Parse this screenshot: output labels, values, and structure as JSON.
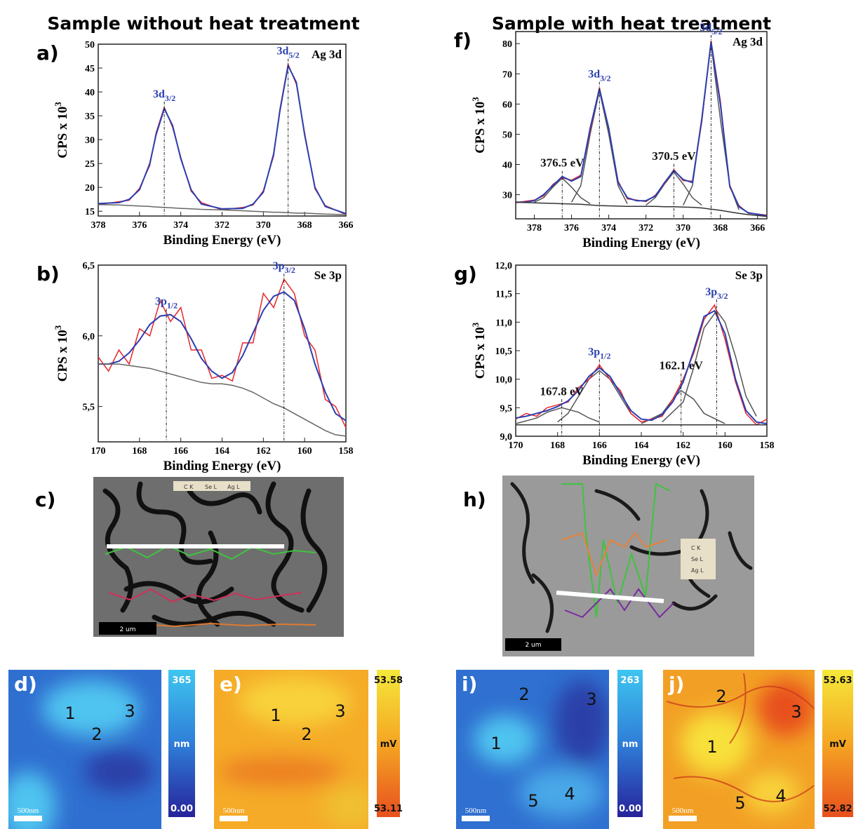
{
  "headers": [
    "Sample without heat treatment",
    "Sample with heat treatment"
  ],
  "chart_data": [
    {
      "type": "line",
      "panel": "a)",
      "corner_label": "Ag 3d",
      "x_label": "Binding Energy (eV)",
      "y_label": "CPS x 10",
      "y_label_sup": "3",
      "xlim": [
        378,
        366
      ],
      "ylim": [
        14,
        50
      ],
      "xticks": [
        378,
        376,
        374,
        372,
        370,
        368,
        366
      ],
      "yticks": [
        15,
        20,
        25,
        30,
        35,
        40,
        45,
        50
      ],
      "x": [
        378,
        377,
        376.5,
        376,
        375.5,
        375.2,
        374.8,
        374.4,
        374,
        373.5,
        373,
        372,
        371,
        370.5,
        370,
        369.5,
        369.2,
        368.8,
        368.4,
        368,
        367.5,
        367,
        366
      ],
      "series": [
        {
          "color": "#e8262a",
          "values": [
            16.4,
            17.0,
            17.3,
            19.8,
            24.6,
            31.4,
            36.8,
            32.6,
            26.3,
            19.2,
            16.8,
            15.3,
            15.8,
            16.3,
            19.3,
            26.6,
            36.4,
            45.8,
            41.6,
            31.4,
            19.7,
            16.2,
            14.3
          ]
        },
        {
          "color": "#2b3fb0",
          "values": [
            16.6,
            16.8,
            17.5,
            19.5,
            25,
            31,
            36.5,
            33,
            26,
            19.5,
            16.5,
            15.5,
            15.6,
            16.5,
            19,
            27,
            36,
            45.5,
            42,
            31,
            20,
            16,
            14.5
          ]
        },
        {
          "color": "#666666",
          "values": [
            16.4,
            16.3,
            16.2,
            16.1,
            16,
            15.9,
            15.8,
            15.7,
            15.6,
            15.5,
            15.4,
            15.3,
            15.1,
            15,
            14.9,
            14.8,
            14.8,
            14.7,
            14.6,
            14.6,
            14.5,
            14.4,
            14.3
          ]
        }
      ],
      "annotations": [
        {
          "text": "3d",
          "sub": "3/2",
          "x": 374.8
        },
        {
          "text": "3d",
          "sub": "5/2",
          "x": 368.8
        }
      ]
    },
    {
      "type": "line",
      "panel": "b)",
      "corner_label": "Se 3p",
      "x_label": "Binding Energy (eV)",
      "y_label": "CPS x 10",
      "y_label_sup": "3",
      "xlim": [
        170,
        158
      ],
      "ylim": [
        5.25,
        6.5
      ],
      "xticks": [
        170,
        168,
        166,
        164,
        162,
        160,
        158
      ],
      "yticks": [
        {
          "value": 5.5,
          "label": "5,5"
        },
        {
          "value": 6.0,
          "label": "6,0"
        },
        {
          "value": 6.5,
          "label": "6,5"
        }
      ],
      "x": [
        170,
        169.5,
        169,
        168.5,
        168,
        167.5,
        167,
        166.5,
        166,
        165.5,
        165,
        164.5,
        164,
        163.5,
        163,
        162.5,
        162,
        161.5,
        161,
        160.5,
        160,
        159.5,
        159,
        158.5,
        158
      ],
      "series": [
        {
          "color": "#e8262a",
          "values": [
            5.85,
            5.75,
            5.9,
            5.8,
            6.05,
            6.0,
            6.25,
            6.1,
            6.2,
            5.9,
            5.9,
            5.7,
            5.72,
            5.68,
            5.95,
            5.95,
            6.3,
            6.2,
            6.4,
            6.3,
            6.0,
            5.9,
            5.55,
            5.5,
            5.35
          ]
        },
        {
          "color": "#2b3fb0",
          "values": [
            5.8,
            5.8,
            5.82,
            5.88,
            5.97,
            6.08,
            6.14,
            6.15,
            6.1,
            5.98,
            5.84,
            5.75,
            5.7,
            5.74,
            5.86,
            6.02,
            6.18,
            6.28,
            6.31,
            6.25,
            6.05,
            5.8,
            5.6,
            5.45,
            5.4
          ]
        },
        {
          "color": "#666666",
          "values": [
            5.8,
            5.8,
            5.8,
            5.79,
            5.78,
            5.77,
            5.75,
            5.73,
            5.71,
            5.69,
            5.67,
            5.66,
            5.66,
            5.65,
            5.63,
            5.6,
            5.56,
            5.52,
            5.49,
            5.45,
            5.41,
            5.37,
            5.33,
            5.3,
            5.29
          ]
        }
      ],
      "annotations": [
        {
          "text": "3p",
          "sub": "1/2",
          "x": 166.7
        },
        {
          "text": "3p",
          "sub": "3/2",
          "x": 161
        }
      ]
    },
    {
      "type": "line",
      "panel": "f)",
      "corner_label": "Ag 3d",
      "x_label": "Binding Energy (eV)",
      "y_label": "CPS x 10",
      "y_label_sup": "3",
      "xlim": [
        379,
        365.5
      ],
      "ylim": [
        22,
        84
      ],
      "xticks": [
        378,
        376,
        374,
        372,
        370,
        368,
        366
      ],
      "yticks": [
        30,
        40,
        50,
        60,
        70,
        80
      ],
      "x": [
        379,
        378.5,
        378,
        377.5,
        377,
        376.5,
        376,
        375.5,
        375,
        374.5,
        374,
        373.5,
        373,
        372.5,
        372,
        371.5,
        371,
        370.5,
        370,
        369.5,
        369,
        368.5,
        368,
        367.5,
        367,
        366.5,
        366,
        365.5
      ],
      "series": [
        {
          "color": "#555555",
          "x": [
            378,
            377.5,
            377,
            376.5,
            376,
            375.5,
            375
          ],
          "values": [
            27.5,
            29,
            32.5,
            35.5,
            32.5,
            29,
            27
          ]
        },
        {
          "color": "#555555",
          "x": [
            376,
            375.5,
            375,
            374.5,
            374,
            373.5,
            373
          ],
          "values": [
            27.5,
            33,
            50,
            64.5,
            50,
            33,
            27
          ]
        },
        {
          "color": "#555555",
          "x": [
            372,
            371.5,
            371,
            370.5,
            370,
            369.5,
            369
          ],
          "values": [
            26.5,
            29,
            33.5,
            37.5,
            33.5,
            29,
            26.5
          ]
        },
        {
          "color": "#555555",
          "x": [
            370,
            369.5,
            369,
            368.5,
            368,
            367.5,
            367
          ],
          "values": [
            26.5,
            33,
            55,
            80,
            55,
            33,
            25
          ]
        },
        {
          "color": "#e8262a",
          "values": [
            27.3,
            27.8,
            28.2,
            29.6,
            33.4,
            35.6,
            34.8,
            36.5,
            51,
            65.5,
            51.5,
            34.5,
            28.6,
            28.2,
            27.7,
            29.8,
            33.6,
            38.3,
            34.6,
            34.5,
            54,
            81,
            61,
            32.5,
            26.4,
            23.8,
            23.6,
            23.2
          ]
        },
        {
          "color": "#2b3fb0",
          "values": [
            27.5,
            27.5,
            28,
            30,
            33,
            36,
            34.5,
            36,
            52,
            65,
            52,
            34,
            29,
            28,
            28,
            29.5,
            34,
            38,
            35,
            34,
            55,
            80.5,
            60,
            33,
            26,
            24,
            23.5,
            23
          ]
        },
        {
          "color": "#333333",
          "values": [
            27.5,
            27.4,
            27.3,
            27.2,
            27.1,
            27,
            26.9,
            26.8,
            26.6,
            26.4,
            26.3,
            26.2,
            26.1,
            26.1,
            26.1,
            26.1,
            26,
            26,
            25.9,
            25.8,
            25.6,
            25.2,
            24.8,
            24.3,
            23.8,
            23.4,
            23.1,
            22.8
          ]
        }
      ],
      "annotations": [
        {
          "text": "376.5 eV",
          "x": 376.5
        },
        {
          "text": "3d",
          "sub": "3/2",
          "x": 374.5
        },
        {
          "text": "370.5 eV",
          "x": 370.5
        },
        {
          "text": "3d",
          "sub": "5/2",
          "x": 368.5
        }
      ]
    },
    {
      "type": "line",
      "panel": "g)",
      "corner_label": "Se 3p",
      "x_label": "Binding Energy (eV)",
      "y_label": "CPS x 10",
      "y_label_sup": "3",
      "xlim": [
        170,
        158
      ],
      "ylim": [
        9,
        12
      ],
      "xticks": [
        170,
        168,
        166,
        164,
        162,
        160,
        158
      ],
      "yticks": [
        {
          "value": 9.0,
          "label": "9,0"
        },
        {
          "value": 9.5,
          "label": "9,5"
        },
        {
          "value": 10.0,
          "label": "10,0"
        },
        {
          "value": 10.5,
          "label": "10,5"
        },
        {
          "value": 11.0,
          "label": "11,0"
        },
        {
          "value": 11.5,
          "label": "11,5"
        },
        {
          "value": 12.0,
          "label": "12,0"
        }
      ],
      "x": [
        170,
        169.5,
        169,
        168.5,
        168,
        167.5,
        167,
        166.5,
        166,
        165.5,
        165,
        164.5,
        164,
        163.5,
        163,
        162.5,
        162,
        161.5,
        161,
        160.5,
        160,
        159.5,
        159,
        158.5,
        158
      ],
      "series": [
        {
          "color": "#555555",
          "x": [
            170,
            169,
            168.5,
            167.8,
            167,
            166.5,
            166
          ],
          "values": [
            9.22,
            9.32,
            9.42,
            9.5,
            9.42,
            9.32,
            9.25
          ]
        },
        {
          "color": "#555555",
          "x": [
            168,
            167.5,
            167,
            166.5,
            166,
            165.5,
            165,
            164.5,
            164
          ],
          "values": [
            9.25,
            9.4,
            9.7,
            10.0,
            10.15,
            10.0,
            9.7,
            9.4,
            9.25
          ]
        },
        {
          "color": "#555555",
          "x": [
            164,
            163,
            162.5,
            162.1,
            161.5,
            161,
            160
          ],
          "values": [
            9.22,
            9.4,
            9.65,
            9.8,
            9.65,
            9.4,
            9.22
          ]
        },
        {
          "color": "#555555",
          "x": [
            163,
            162,
            161.5,
            161,
            160.4,
            160,
            159.5,
            159,
            158.5
          ],
          "values": [
            9.25,
            9.6,
            10.2,
            10.9,
            11.2,
            11.0,
            10.4,
            9.7,
            9.35
          ]
        },
        {
          "color": "#e8262a",
          "values": [
            9.3,
            9.4,
            9.35,
            9.5,
            9.55,
            9.6,
            9.85,
            10.0,
            10.25,
            10.0,
            9.8,
            9.4,
            9.25,
            9.3,
            9.35,
            9.65,
            10.0,
            10.45,
            11.05,
            11.3,
            10.7,
            9.95,
            9.4,
            9.2,
            9.3
          ]
        },
        {
          "color": "#2b3fb0",
          "values": [
            9.32,
            9.35,
            9.4,
            9.45,
            9.52,
            9.62,
            9.8,
            10.05,
            10.2,
            10.05,
            9.75,
            9.45,
            9.3,
            9.28,
            9.38,
            9.6,
            9.95,
            10.5,
            11.1,
            11.2,
            10.8,
            10.0,
            9.45,
            9.25,
            9.22
          ]
        },
        {
          "color": "#333333",
          "values": [
            9.2,
            9.2,
            9.2,
            9.2,
            9.2,
            9.2,
            9.2,
            9.2,
            9.2,
            9.2,
            9.2,
            9.2,
            9.2,
            9.2,
            9.2,
            9.2,
            9.2,
            9.2,
            9.2,
            9.2,
            9.2,
            9.2,
            9.2,
            9.2,
            9.2
          ]
        }
      ],
      "annotations": [
        {
          "text": "167.8 eV",
          "x": 167.8
        },
        {
          "text": "3p",
          "sub": "1/2",
          "x": 166
        },
        {
          "text": "162.1 eV",
          "x": 162.1
        },
        {
          "text": "3p",
          "sub": "3/2",
          "x": 160.4
        }
      ]
    }
  ],
  "sem_panels": [
    {
      "label": "c)",
      "legend": [
        "C K",
        "Se L",
        "Ag L"
      ],
      "scale": "2 um"
    },
    {
      "label": "h)",
      "legend": [
        "C K",
        "Se L",
        "Ag L"
      ],
      "scale": "2 um"
    }
  ],
  "afm_panels": [
    {
      "label": "d)",
      "points": [
        "1",
        "2",
        "3"
      ],
      "scale": "500nm",
      "bar_max": "365",
      "unit": "nm",
      "bar_min": "0.00"
    },
    {
      "label": "e)",
      "points": [
        "1",
        "2",
        "3"
      ],
      "scale": "500nm",
      "bar_max": "53.58",
      "unit": "mV",
      "bar_min": "53.11"
    },
    {
      "label": "i)",
      "points": [
        "1",
        "2",
        "3",
        "4",
        "5"
      ],
      "scale": "500nm",
      "bar_max": "263",
      "unit": "nm",
      "bar_min": "0.00"
    },
    {
      "label": "j)",
      "points": [
        "1",
        "2",
        "3",
        "4",
        "5"
      ],
      "scale": "500nm",
      "bar_max": "53.63",
      "unit": "mV",
      "bar_min": "52.82"
    }
  ]
}
